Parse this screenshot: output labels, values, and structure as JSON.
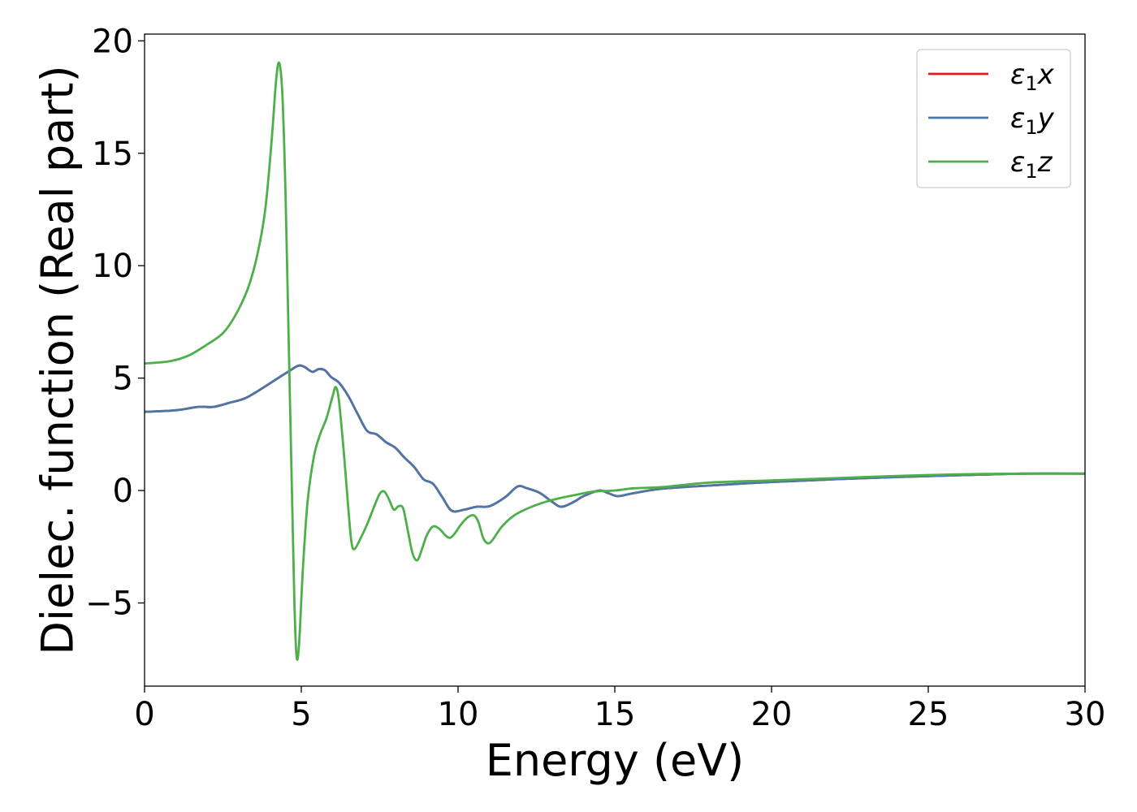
{
  "chart_data": {
    "type": "line",
    "title": "",
    "xlabel": "Energy (eV)",
    "ylabel": "Dielec. function (Real part)",
    "xlim": [
      0,
      30
    ],
    "ylim": [
      -8.7,
      20.3
    ],
    "xticks": [
      0,
      5,
      10,
      15,
      20,
      25,
      30
    ],
    "yticks": [
      -5,
      0,
      5,
      10,
      15,
      20
    ],
    "xtick_labels": [
      "0",
      "5",
      "10",
      "15",
      "20",
      "25",
      "30"
    ],
    "ytick_labels": [
      "−5",
      "0",
      "5",
      "10",
      "15",
      "20"
    ],
    "grid": false,
    "legend_position": "top-right",
    "series": [
      {
        "name": "ε1x",
        "name_base": "ε",
        "name_sub": "1",
        "name_tail": "x",
        "color": "#e41a1c",
        "points": [
          [
            0,
            3.5
          ],
          [
            1,
            3.57
          ],
          [
            1.7,
            3.72
          ],
          [
            2.2,
            3.72
          ],
          [
            2.7,
            3.9
          ],
          [
            3.2,
            4.1
          ],
          [
            3.7,
            4.5
          ],
          [
            4.2,
            4.95
          ],
          [
            4.6,
            5.3
          ],
          [
            4.9,
            5.55
          ],
          [
            5.1,
            5.5
          ],
          [
            5.35,
            5.28
          ],
          [
            5.55,
            5.4
          ],
          [
            5.75,
            5.35
          ],
          [
            5.95,
            5.05
          ],
          [
            6.2,
            4.8
          ],
          [
            6.5,
            4.2
          ],
          [
            6.8,
            3.4
          ],
          [
            7.1,
            2.65
          ],
          [
            7.4,
            2.5
          ],
          [
            7.7,
            2.15
          ],
          [
            8.0,
            1.9
          ],
          [
            8.3,
            1.45
          ],
          [
            8.6,
            1.05
          ],
          [
            8.9,
            0.5
          ],
          [
            9.2,
            0.3
          ],
          [
            9.5,
            -0.3
          ],
          [
            9.8,
            -0.9
          ],
          [
            10.2,
            -0.85
          ],
          [
            10.6,
            -0.72
          ],
          [
            11.0,
            -0.7
          ],
          [
            11.5,
            -0.3
          ],
          [
            11.9,
            0.18
          ],
          [
            12.2,
            0.1
          ],
          [
            12.6,
            -0.1
          ],
          [
            13.0,
            -0.5
          ],
          [
            13.3,
            -0.72
          ],
          [
            13.7,
            -0.5
          ],
          [
            14.0,
            -0.25
          ],
          [
            14.5,
            0.0
          ],
          [
            14.8,
            -0.12
          ],
          [
            15.1,
            -0.25
          ],
          [
            15.6,
            -0.12
          ],
          [
            16.5,
            0.08
          ],
          [
            18,
            0.22
          ],
          [
            20,
            0.38
          ],
          [
            22,
            0.5
          ],
          [
            24,
            0.6
          ],
          [
            26,
            0.68
          ],
          [
            28,
            0.75
          ],
          [
            30,
            0.75
          ]
        ]
      },
      {
        "name": "ε1y",
        "name_base": "ε",
        "name_sub": "1",
        "name_tail": "y",
        "color": "#4a77aa",
        "points": [
          [
            0,
            3.5
          ],
          [
            1,
            3.57
          ],
          [
            1.7,
            3.72
          ],
          [
            2.2,
            3.72
          ],
          [
            2.7,
            3.9
          ],
          [
            3.2,
            4.1
          ],
          [
            3.7,
            4.5
          ],
          [
            4.2,
            4.95
          ],
          [
            4.6,
            5.3
          ],
          [
            4.9,
            5.55
          ],
          [
            5.1,
            5.5
          ],
          [
            5.35,
            5.28
          ],
          [
            5.55,
            5.4
          ],
          [
            5.75,
            5.35
          ],
          [
            5.95,
            5.05
          ],
          [
            6.2,
            4.8
          ],
          [
            6.5,
            4.2
          ],
          [
            6.8,
            3.4
          ],
          [
            7.1,
            2.65
          ],
          [
            7.4,
            2.5
          ],
          [
            7.7,
            2.15
          ],
          [
            8.0,
            1.9
          ],
          [
            8.3,
            1.45
          ],
          [
            8.6,
            1.05
          ],
          [
            8.9,
            0.5
          ],
          [
            9.2,
            0.3
          ],
          [
            9.5,
            -0.3
          ],
          [
            9.8,
            -0.9
          ],
          [
            10.2,
            -0.85
          ],
          [
            10.6,
            -0.72
          ],
          [
            11.0,
            -0.7
          ],
          [
            11.5,
            -0.3
          ],
          [
            11.9,
            0.18
          ],
          [
            12.2,
            0.1
          ],
          [
            12.6,
            -0.1
          ],
          [
            13.0,
            -0.5
          ],
          [
            13.3,
            -0.72
          ],
          [
            13.7,
            -0.5
          ],
          [
            14.0,
            -0.25
          ],
          [
            14.5,
            0.0
          ],
          [
            14.8,
            -0.12
          ],
          [
            15.1,
            -0.25
          ],
          [
            15.6,
            -0.12
          ],
          [
            16.5,
            0.08
          ],
          [
            18,
            0.22
          ],
          [
            20,
            0.38
          ],
          [
            22,
            0.5
          ],
          [
            24,
            0.6
          ],
          [
            26,
            0.68
          ],
          [
            28,
            0.75
          ],
          [
            30,
            0.75
          ]
        ]
      },
      {
        "name": "ε1z",
        "name_base": "ε",
        "name_sub": "1",
        "name_tail": "z",
        "color": "#4daf4a",
        "points": [
          [
            0,
            5.65
          ],
          [
            0.8,
            5.75
          ],
          [
            1.4,
            6.0
          ],
          [
            2.0,
            6.5
          ],
          [
            2.5,
            7.0
          ],
          [
            2.9,
            7.8
          ],
          [
            3.3,
            9.0
          ],
          [
            3.6,
            10.5
          ],
          [
            3.85,
            12.5
          ],
          [
            4.05,
            15.5
          ],
          [
            4.2,
            18.3
          ],
          [
            4.3,
            19.0
          ],
          [
            4.4,
            17.5
          ],
          [
            4.5,
            13.0
          ],
          [
            4.6,
            6.5
          ],
          [
            4.7,
            0.0
          ],
          [
            4.78,
            -5.0
          ],
          [
            4.85,
            -7.4
          ],
          [
            4.93,
            -6.8
          ],
          [
            5.05,
            -3.5
          ],
          [
            5.2,
            -0.5
          ],
          [
            5.4,
            1.5
          ],
          [
            5.6,
            2.5
          ],
          [
            5.8,
            3.2
          ],
          [
            6.0,
            4.2
          ],
          [
            6.1,
            4.6
          ],
          [
            6.2,
            4.0
          ],
          [
            6.35,
            1.8
          ],
          [
            6.5,
            -0.8
          ],
          [
            6.6,
            -2.3
          ],
          [
            6.7,
            -2.6
          ],
          [
            6.9,
            -2.1
          ],
          [
            7.1,
            -1.5
          ],
          [
            7.3,
            -0.8
          ],
          [
            7.5,
            -0.15
          ],
          [
            7.65,
            -0.05
          ],
          [
            7.8,
            -0.4
          ],
          [
            7.95,
            -0.85
          ],
          [
            8.1,
            -0.7
          ],
          [
            8.25,
            -0.8
          ],
          [
            8.4,
            -1.8
          ],
          [
            8.55,
            -2.8
          ],
          [
            8.7,
            -3.1
          ],
          [
            8.85,
            -2.6
          ],
          [
            9.0,
            -2.0
          ],
          [
            9.2,
            -1.6
          ],
          [
            9.4,
            -1.7
          ],
          [
            9.6,
            -2.0
          ],
          [
            9.75,
            -2.1
          ],
          [
            9.9,
            -1.9
          ],
          [
            10.1,
            -1.5
          ],
          [
            10.3,
            -1.2
          ],
          [
            10.5,
            -1.1
          ],
          [
            10.65,
            -1.4
          ],
          [
            10.8,
            -2.1
          ],
          [
            10.95,
            -2.35
          ],
          [
            11.1,
            -2.2
          ],
          [
            11.4,
            -1.6
          ],
          [
            11.8,
            -1.1
          ],
          [
            12.3,
            -0.75
          ],
          [
            12.8,
            -0.5
          ],
          [
            13.3,
            -0.32
          ],
          [
            13.8,
            -0.18
          ],
          [
            14.3,
            -0.05
          ],
          [
            15.0,
            0.0
          ],
          [
            15.6,
            0.1
          ],
          [
            16.5,
            0.15
          ],
          [
            18,
            0.35
          ],
          [
            20,
            0.45
          ],
          [
            22,
            0.55
          ],
          [
            24,
            0.65
          ],
          [
            26,
            0.72
          ],
          [
            28,
            0.75
          ],
          [
            30,
            0.75
          ]
        ]
      }
    ]
  }
}
